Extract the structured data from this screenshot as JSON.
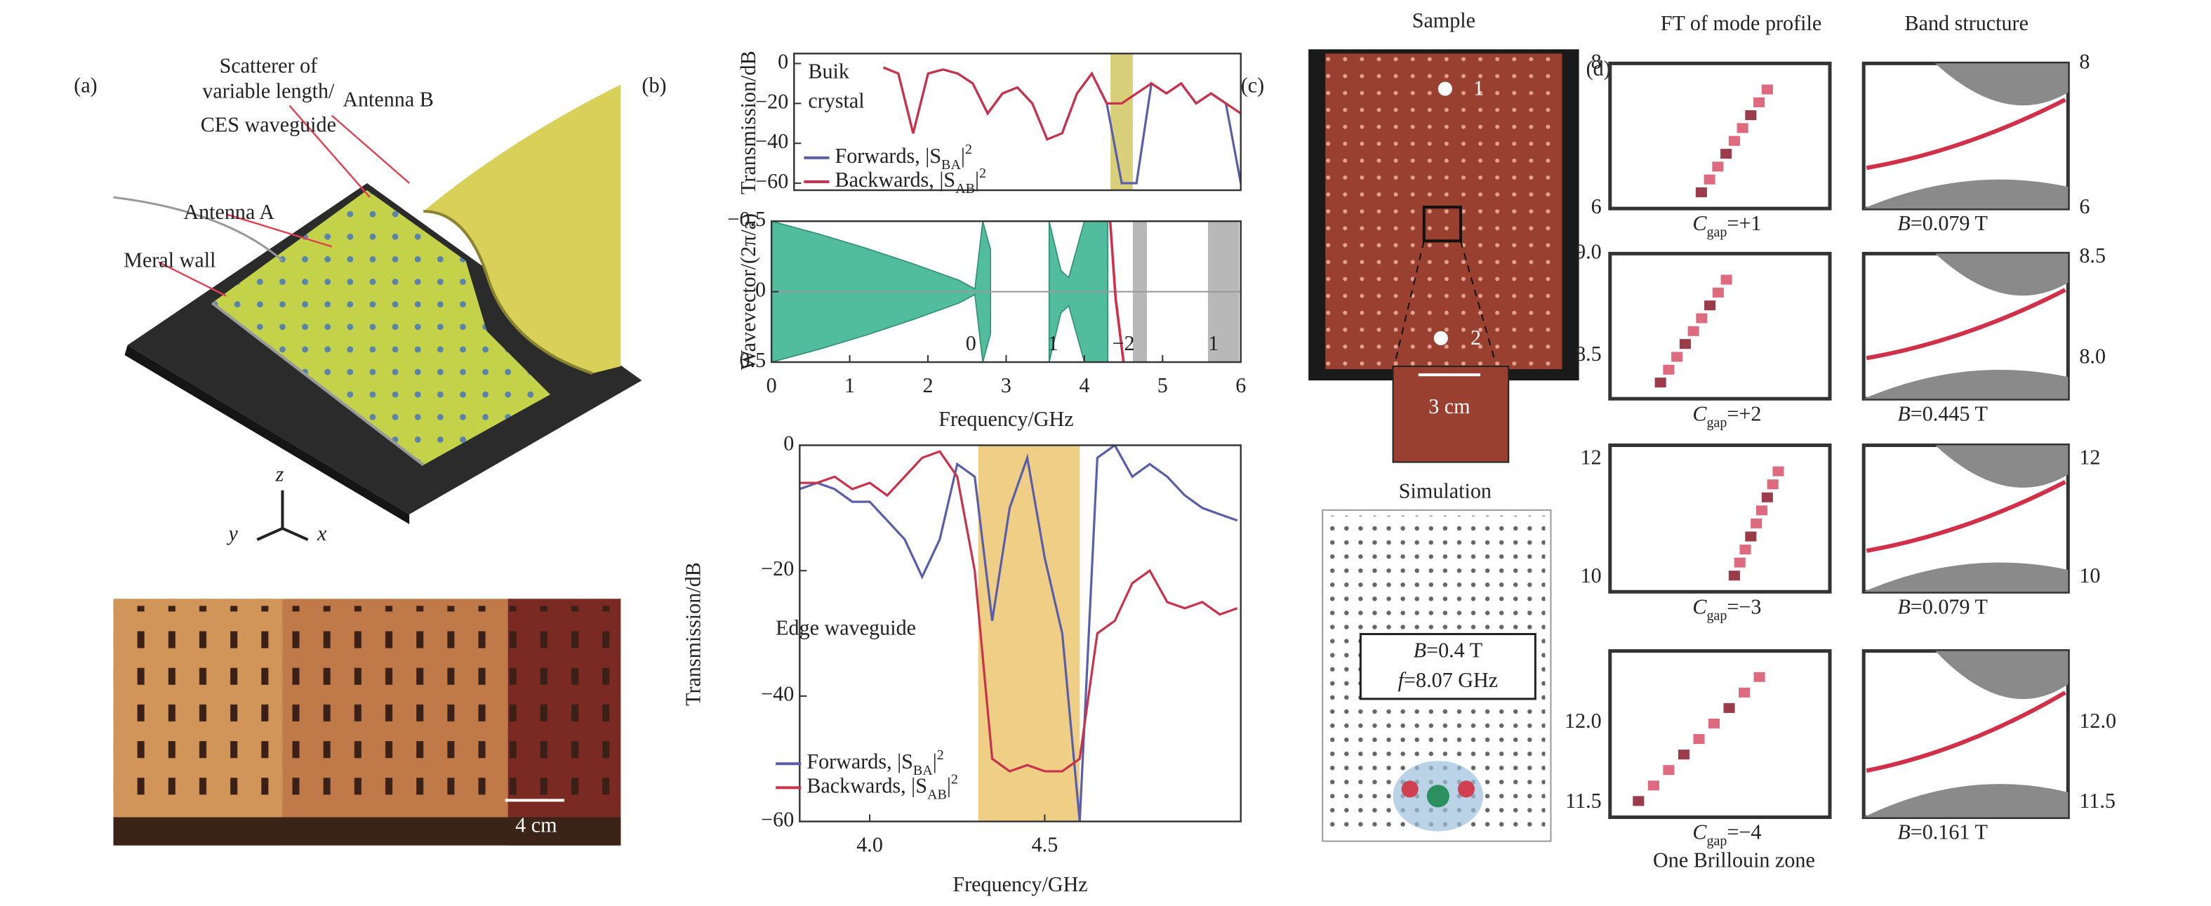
{
  "panel_labels": [
    "(a)",
    "(b)",
    "(c)",
    "(d)"
  ],
  "panel_a": {
    "callouts": [
      "Scatterer of",
      "variable length/",
      "CES waveguide",
      "Antenna B",
      "Antenna A",
      "Meral wall"
    ],
    "axes": [
      "z",
      "y",
      "x"
    ],
    "scale": "4 cm"
  },
  "chart_data": [
    {
      "type": "line",
      "ylabel": "Transmission/dB",
      "annotation": [
        "Buik",
        "crystal"
      ],
      "xlim": [
        0,
        6
      ],
      "ylim": [
        -63.5,
        5
      ],
      "yticks": [
        0,
        {
          "value": -20,
          "label": "−20"
        },
        {
          "value": -40,
          "label": "−40"
        },
        {
          "value": -60,
          "label": "−60"
        }
      ],
      "band": [
        4.25,
        4.55
      ],
      "band_color": "#d8cf7a",
      "x": [
        1.2,
        1.4,
        1.6,
        1.8,
        2.0,
        2.2,
        2.4,
        2.6,
        2.8,
        3.0,
        3.2,
        3.4,
        3.6,
        3.8,
        4.0,
        4.2,
        4.4,
        4.6,
        4.8,
        5.0,
        5.2,
        5.4,
        5.6,
        5.8,
        6.0
      ],
      "series": [
        {
          "name": "Forwards, |S",
          "sub": "BA",
          "suffix": "|",
          "sup": "2",
          "color": "#5a5ea8",
          "values": [
            -2,
            -5,
            -35,
            -5,
            -3,
            -5,
            -10,
            -25,
            -15,
            -12,
            -20,
            -38,
            -35,
            -15,
            -5,
            -20,
            -60,
            -60,
            -10,
            -15,
            -10,
            -20,
            -15,
            -20,
            -60
          ]
        },
        {
          "name": "Backwards, |S",
          "sub": "AB",
          "suffix": "|",
          "sup": "2",
          "color": "#c8324a",
          "values": [
            -2,
            -5,
            -35,
            -5,
            -3,
            -5,
            -10,
            -25,
            -15,
            -12,
            -20,
            -38,
            -35,
            -15,
            -5,
            -20,
            -20,
            -15,
            -10,
            -15,
            -10,
            -20,
            -15,
            -20,
            -25
          ]
        }
      ]
    },
    {
      "type": "dispersion",
      "ylabel": "Wavevector/(2π/a)",
      "xlabel": "Frequency/GHz",
      "xlim": [
        0,
        6
      ],
      "ylim": [
        0.5,
        -0.5
      ],
      "xticks": [
        0,
        1,
        2,
        3,
        4,
        5,
        6
      ],
      "yticks": [
        {
          "value": -0.5,
          "label": "−0.5"
        },
        0,
        {
          "value": 0.5,
          "label": "0.5"
        }
      ],
      "bulk": {
        "color": "#52bd9c",
        "x": [
          0,
          0.6,
          1.2,
          1.8,
          2.4,
          2.6,
          2.7,
          2.8,
          3.0,
          3.55,
          3.7,
          3.8,
          4.0,
          4.3
        ],
        "values": [
          0.5,
          0.41,
          0.31,
          0.2,
          0.08,
          0.02,
          0.5,
          0.3,
          null,
          0.5,
          0.15,
          0.1,
          0.5,
          0.5
        ]
      },
      "edge": {
        "color": "#d0304a",
        "x": [
          4.33,
          4.4,
          4.5
        ],
        "values": [
          -0.5,
          0.05,
          0.5
        ]
      },
      "shaded": [
        [
          4.62,
          4.8
        ],
        [
          5.58,
          5.98
        ]
      ],
      "shaded_color": "#b8b8b8",
      "gap_labels": [
        "0",
        "1",
        "−2",
        "1"
      ],
      "gap_label_x": [
        2.55,
        3.6,
        4.5,
        5.65
      ]
    },
    {
      "type": "line",
      "ylabel": "Transmission/dB",
      "xlabel": "Frequency/GHz",
      "annotation": [
        "Edge waveguide"
      ],
      "xlim": [
        3.8,
        5.06
      ],
      "ylim": [
        -60,
        0
      ],
      "xticks": [
        {
          "value": 4,
          "label": "4.0"
        },
        4.5
      ],
      "yticks": [
        0,
        {
          "value": -20,
          "label": "−20"
        },
        {
          "value": -40,
          "label": "−40"
        },
        {
          "value": -60,
          "label": "−60"
        }
      ],
      "band": [
        4.31,
        4.6
      ],
      "band_color": "#efcf85",
      "x": [
        3.8,
        3.85,
        3.9,
        3.95,
        4.0,
        4.05,
        4.1,
        4.15,
        4.2,
        4.25,
        4.3,
        4.35,
        4.4,
        4.45,
        4.5,
        4.55,
        4.6,
        4.65,
        4.7,
        4.75,
        4.8,
        4.85,
        4.9,
        4.95,
        5.0,
        5.05
      ],
      "series": [
        {
          "name": "Forwards, |S",
          "sub": "BA",
          "suffix": "|",
          "sup": "2",
          "color": "#5a5ea8",
          "values": [
            -7,
            -6,
            -7,
            -9,
            -9,
            -12,
            -15,
            -21,
            -15,
            -3,
            -5,
            -28,
            -10,
            -2,
            -18,
            -30,
            -60,
            -2,
            0,
            -5,
            -3,
            -5,
            -8,
            -10,
            -11,
            -12
          ]
        },
        {
          "name": "Backwards, |S",
          "sub": "AB",
          "suffix": "|",
          "sup": "2",
          "color": "#c8324a",
          "values": [
            -6,
            -6,
            -5,
            -7,
            -6,
            -8,
            -5,
            -2,
            -1,
            -5,
            -20,
            -50,
            -52,
            -51,
            -52,
            -52,
            -50,
            -30,
            -28,
            -22,
            -20,
            -25,
            -26,
            -25,
            -27,
            -26
          ]
        }
      ]
    }
  ],
  "panel_c": {
    "sample_title": "Sample",
    "markers": [
      "1",
      "2"
    ],
    "scale": "3 cm",
    "simulation_title": "Simulation",
    "field": [
      "B",
      "=0.4 T"
    ],
    "frequency": [
      "f",
      "=8.07 GHz"
    ]
  },
  "panel_d": {
    "headers": [
      "FT of mode profile",
      "Band structure"
    ],
    "footer": "One Brillouin zone",
    "rows": [
      {
        "left_ylim": [
          6,
          8
        ],
        "left_yticks": [
          8,
          6
        ],
        "right_ylim": [
          6,
          8
        ],
        "right_yticks": [
          8,
          6
        ],
        "gap": [
          "C",
          "gap",
          "=+1"
        ],
        "field": [
          "B",
          "=0.079 T"
        ]
      },
      {
        "left_ylim": [
          8.29,
          9.0
        ],
        "left_yticks": [
          {
            "value": 9,
            "label": "9.0"
          },
          8.5
        ],
        "right_ylim": [
          7.8,
          8.52
        ],
        "right_yticks": [
          8.5,
          {
            "value": 8,
            "label": "8.0"
          }
        ],
        "gap": [
          "C",
          "gap",
          "=+2"
        ],
        "field": [
          "B",
          "=0.445 T"
        ]
      },
      {
        "left_ylim": [
          9.76,
          12.24
        ],
        "left_yticks": [
          12,
          10
        ],
        "right_ylim": [
          9.76,
          12.24
        ],
        "right_yticks": [
          12,
          10
        ],
        "gap": [
          "C",
          "gap",
          "=−3"
        ],
        "field": [
          "B",
          "=0.079 T"
        ]
      },
      {
        "left_ylim": [
          11.41,
          12.45
        ],
        "left_yticks": [
          {
            "value": 12,
            "label": "12.0"
          },
          11.5
        ],
        "right_ylim": [
          11.41,
          12.45
        ],
        "right_yticks": [
          {
            "value": 12,
            "label": "12.0"
          },
          11.5
        ],
        "gap": [
          "C",
          "gap",
          "=−4"
        ],
        "field": [
          "B",
          "=0.161 T"
        ]
      }
    ]
  }
}
